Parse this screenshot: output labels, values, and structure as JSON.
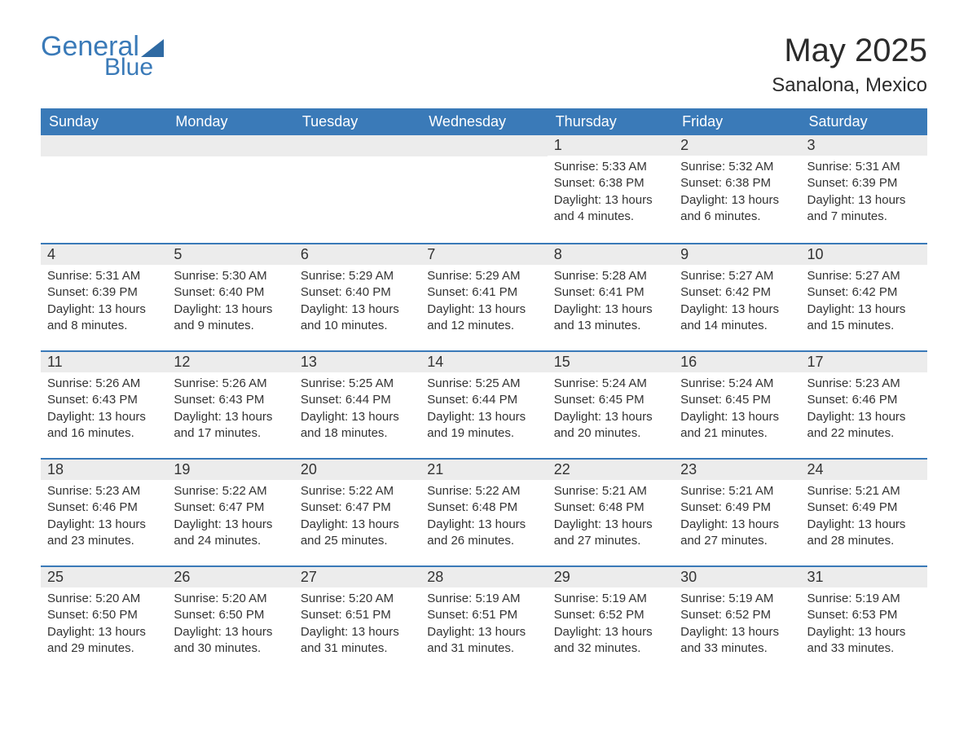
{
  "brand": {
    "word1": "General",
    "word2": "Blue",
    "text_color": "#3a7ab8",
    "sail_color": "#2f6aa3"
  },
  "title": "May 2025",
  "location": "Sanalona, Mexico",
  "colors": {
    "header_bg": "#3a7ab8",
    "header_text": "#ffffff",
    "row_band": "#ececec",
    "accent_line": "#3a7ab8",
    "body_text": "#333333",
    "page_bg": "#ffffff"
  },
  "fonts": {
    "title_size_pt": 40,
    "location_size_pt": 24,
    "dayheader_size_pt": 18,
    "daynum_size_pt": 18,
    "body_size_pt": 15
  },
  "day_headers": [
    "Sunday",
    "Monday",
    "Tuesday",
    "Wednesday",
    "Thursday",
    "Friday",
    "Saturday"
  ],
  "weeks": [
    [
      null,
      null,
      null,
      null,
      {
        "n": "1",
        "sunrise": "5:33 AM",
        "sunset": "6:38 PM",
        "daylight": "13 hours and 4 minutes."
      },
      {
        "n": "2",
        "sunrise": "5:32 AM",
        "sunset": "6:38 PM",
        "daylight": "13 hours and 6 minutes."
      },
      {
        "n": "3",
        "sunrise": "5:31 AM",
        "sunset": "6:39 PM",
        "daylight": "13 hours and 7 minutes."
      }
    ],
    [
      {
        "n": "4",
        "sunrise": "5:31 AM",
        "sunset": "6:39 PM",
        "daylight": "13 hours and 8 minutes."
      },
      {
        "n": "5",
        "sunrise": "5:30 AM",
        "sunset": "6:40 PM",
        "daylight": "13 hours and 9 minutes."
      },
      {
        "n": "6",
        "sunrise": "5:29 AM",
        "sunset": "6:40 PM",
        "daylight": "13 hours and 10 minutes."
      },
      {
        "n": "7",
        "sunrise": "5:29 AM",
        "sunset": "6:41 PM",
        "daylight": "13 hours and 12 minutes."
      },
      {
        "n": "8",
        "sunrise": "5:28 AM",
        "sunset": "6:41 PM",
        "daylight": "13 hours and 13 minutes."
      },
      {
        "n": "9",
        "sunrise": "5:27 AM",
        "sunset": "6:42 PM",
        "daylight": "13 hours and 14 minutes."
      },
      {
        "n": "10",
        "sunrise": "5:27 AM",
        "sunset": "6:42 PM",
        "daylight": "13 hours and 15 minutes."
      }
    ],
    [
      {
        "n": "11",
        "sunrise": "5:26 AM",
        "sunset": "6:43 PM",
        "daylight": "13 hours and 16 minutes."
      },
      {
        "n": "12",
        "sunrise": "5:26 AM",
        "sunset": "6:43 PM",
        "daylight": "13 hours and 17 minutes."
      },
      {
        "n": "13",
        "sunrise": "5:25 AM",
        "sunset": "6:44 PM",
        "daylight": "13 hours and 18 minutes."
      },
      {
        "n": "14",
        "sunrise": "5:25 AM",
        "sunset": "6:44 PM",
        "daylight": "13 hours and 19 minutes."
      },
      {
        "n": "15",
        "sunrise": "5:24 AM",
        "sunset": "6:45 PM",
        "daylight": "13 hours and 20 minutes."
      },
      {
        "n": "16",
        "sunrise": "5:24 AM",
        "sunset": "6:45 PM",
        "daylight": "13 hours and 21 minutes."
      },
      {
        "n": "17",
        "sunrise": "5:23 AM",
        "sunset": "6:46 PM",
        "daylight": "13 hours and 22 minutes."
      }
    ],
    [
      {
        "n": "18",
        "sunrise": "5:23 AM",
        "sunset": "6:46 PM",
        "daylight": "13 hours and 23 minutes."
      },
      {
        "n": "19",
        "sunrise": "5:22 AM",
        "sunset": "6:47 PM",
        "daylight": "13 hours and 24 minutes."
      },
      {
        "n": "20",
        "sunrise": "5:22 AM",
        "sunset": "6:47 PM",
        "daylight": "13 hours and 25 minutes."
      },
      {
        "n": "21",
        "sunrise": "5:22 AM",
        "sunset": "6:48 PM",
        "daylight": "13 hours and 26 minutes."
      },
      {
        "n": "22",
        "sunrise": "5:21 AM",
        "sunset": "6:48 PM",
        "daylight": "13 hours and 27 minutes."
      },
      {
        "n": "23",
        "sunrise": "5:21 AM",
        "sunset": "6:49 PM",
        "daylight": "13 hours and 27 minutes."
      },
      {
        "n": "24",
        "sunrise": "5:21 AM",
        "sunset": "6:49 PM",
        "daylight": "13 hours and 28 minutes."
      }
    ],
    [
      {
        "n": "25",
        "sunrise": "5:20 AM",
        "sunset": "6:50 PM",
        "daylight": "13 hours and 29 minutes."
      },
      {
        "n": "26",
        "sunrise": "5:20 AM",
        "sunset": "6:50 PM",
        "daylight": "13 hours and 30 minutes."
      },
      {
        "n": "27",
        "sunrise": "5:20 AM",
        "sunset": "6:51 PM",
        "daylight": "13 hours and 31 minutes."
      },
      {
        "n": "28",
        "sunrise": "5:19 AM",
        "sunset": "6:51 PM",
        "daylight": "13 hours and 31 minutes."
      },
      {
        "n": "29",
        "sunrise": "5:19 AM",
        "sunset": "6:52 PM",
        "daylight": "13 hours and 32 minutes."
      },
      {
        "n": "30",
        "sunrise": "5:19 AM",
        "sunset": "6:52 PM",
        "daylight": "13 hours and 33 minutes."
      },
      {
        "n": "31",
        "sunrise": "5:19 AM",
        "sunset": "6:53 PM",
        "daylight": "13 hours and 33 minutes."
      }
    ]
  ],
  "labels": {
    "sunrise": "Sunrise: ",
    "sunset": "Sunset: ",
    "daylight": "Daylight: "
  }
}
